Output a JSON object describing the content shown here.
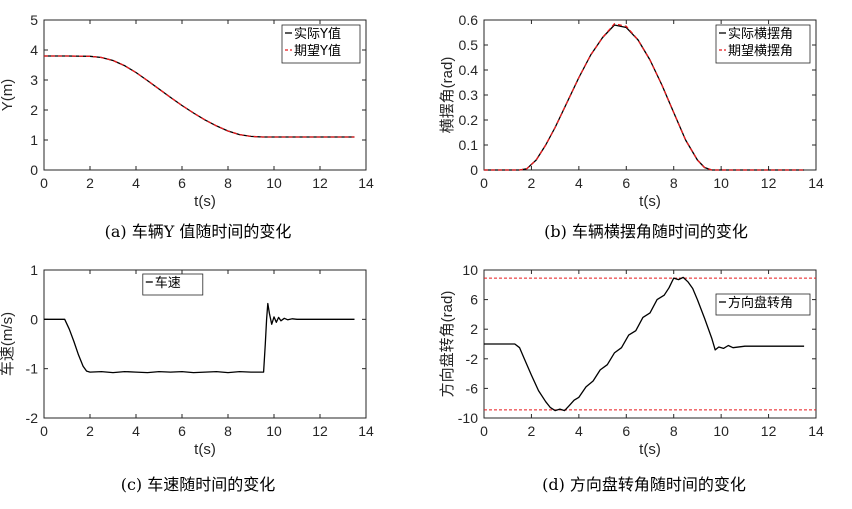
{
  "chart_data": [
    {
      "id": "a",
      "type": "line",
      "caption": "(a)  车辆Y 值随时间的变化",
      "xlabel": "t(s)",
      "ylabel": "Y(m)",
      "xlim": [
        0,
        14
      ],
      "ylim": [
        0,
        5
      ],
      "xticks": [
        0,
        2,
        4,
        6,
        8,
        10,
        12,
        14
      ],
      "yticks": [
        0,
        1,
        2,
        3,
        4,
        5
      ],
      "legend": "top-right",
      "series": [
        {
          "name": "实际Y值",
          "color": "#000000",
          "dash": "solid",
          "x": [
            0,
            1,
            2,
            2.5,
            3,
            3.5,
            4,
            4.5,
            5,
            5.5,
            6,
            6.5,
            7,
            7.5,
            8,
            8.5,
            9,
            9.5,
            10,
            11,
            12,
            13.5
          ],
          "y": [
            3.8,
            3.8,
            3.79,
            3.75,
            3.65,
            3.48,
            3.25,
            2.98,
            2.7,
            2.42,
            2.15,
            1.9,
            1.67,
            1.47,
            1.3,
            1.18,
            1.12,
            1.1,
            1.1,
            1.1,
            1.1,
            1.1
          ]
        },
        {
          "name": "期望Y值",
          "color": "#e8191c",
          "dash": "dashed",
          "x": [
            0,
            1,
            2,
            2.5,
            3,
            3.5,
            4,
            4.5,
            5,
            5.5,
            6,
            6.5,
            7,
            7.5,
            8,
            8.5,
            9,
            9.5,
            10,
            11,
            12,
            13.5
          ],
          "y": [
            3.8,
            3.8,
            3.79,
            3.75,
            3.65,
            3.48,
            3.25,
            2.98,
            2.7,
            2.42,
            2.15,
            1.9,
            1.67,
            1.47,
            1.3,
            1.18,
            1.12,
            1.1,
            1.1,
            1.1,
            1.1,
            1.1
          ]
        }
      ]
    },
    {
      "id": "b",
      "type": "line",
      "caption": "(b)  车辆横摆角随时间的变化",
      "xlabel": "t(s)",
      "ylabel": "横摆角(rad)",
      "xlim": [
        0,
        14
      ],
      "ylim": [
        0,
        0.6
      ],
      "xticks": [
        0,
        2,
        4,
        6,
        8,
        10,
        12,
        14
      ],
      "yticks": [
        0,
        0.1,
        0.2,
        0.3,
        0.4,
        0.5,
        0.6
      ],
      "legend": "top-right",
      "series": [
        {
          "name": "实际横摆角",
          "color": "#000000",
          "dash": "solid",
          "x": [
            0,
            1.5,
            1.8,
            2.2,
            2.6,
            3,
            3.5,
            4,
            4.5,
            5,
            5.5,
            6,
            6.5,
            7,
            7.5,
            8,
            8.5,
            9,
            9.3,
            9.6,
            10,
            12,
            13.5
          ],
          "y": [
            0,
            0,
            0.005,
            0.04,
            0.1,
            0.17,
            0.27,
            0.37,
            0.46,
            0.53,
            0.58,
            0.57,
            0.52,
            0.44,
            0.34,
            0.23,
            0.12,
            0.04,
            0.01,
            0,
            0,
            0,
            0
          ]
        },
        {
          "name": "期望横摆角",
          "color": "#e8191c",
          "dash": "dashed",
          "x": [
            0,
            1.5,
            1.8,
            2.2,
            2.6,
            3,
            3.5,
            4,
            4.5,
            5,
            5.5,
            6,
            6.5,
            7,
            7.5,
            8,
            8.5,
            9,
            9.3,
            9.6,
            10,
            12,
            13.5
          ],
          "y": [
            0,
            0,
            0.005,
            0.04,
            0.1,
            0.17,
            0.27,
            0.37,
            0.46,
            0.53,
            0.585,
            0.575,
            0.52,
            0.44,
            0.34,
            0.23,
            0.12,
            0.04,
            0.01,
            0,
            0,
            0,
            0
          ]
        }
      ]
    },
    {
      "id": "c",
      "type": "line",
      "caption": "(c)  车速随时间的变化",
      "xlabel": "t(s)",
      "ylabel": "车速(m/s)",
      "xlim": [
        0,
        14
      ],
      "ylim": [
        -2,
        1
      ],
      "xticks": [
        0,
        2,
        4,
        6,
        8,
        10,
        12,
        14
      ],
      "yticks": [
        -2,
        -1,
        0,
        1
      ],
      "legend": "top-center",
      "series": [
        {
          "name": "车速",
          "color": "#000000",
          "dash": "solid",
          "x": [
            0,
            0.9,
            1.1,
            1.3,
            1.5,
            1.7,
            1.85,
            2,
            2.5,
            3,
            3.5,
            4,
            4.5,
            5,
            5.5,
            6,
            6.5,
            7,
            7.5,
            8,
            8.5,
            9,
            9.4,
            9.55,
            9.62,
            9.68,
            9.73,
            9.8,
            9.9,
            10,
            10.1,
            10.2,
            10.3,
            10.45,
            10.6,
            10.8,
            11,
            12,
            13.5
          ],
          "y": [
            0,
            0,
            -0.2,
            -0.45,
            -0.72,
            -0.95,
            -1.05,
            -1.07,
            -1.06,
            -1.08,
            -1.06,
            -1.07,
            -1.08,
            -1.06,
            -1.07,
            -1.06,
            -1.08,
            -1.07,
            -1.06,
            -1.08,
            -1.06,
            -1.07,
            -1.07,
            -1.07,
            -0.5,
            0.0,
            0.32,
            0.12,
            -0.1,
            0.05,
            -0.06,
            0.04,
            -0.03,
            0.02,
            -0.01,
            0.01,
            0,
            0,
            0
          ]
        }
      ]
    },
    {
      "id": "d",
      "type": "line",
      "caption": "(d)  方向盘转角随时间的变化",
      "xlabel": "t(s)",
      "ylabel": "方向盘转角(rad)",
      "xlim": [
        0,
        14
      ],
      "ylim": [
        -10,
        10
      ],
      "xticks": [
        0,
        2,
        4,
        6,
        8,
        10,
        12,
        14
      ],
      "yticks": [
        -10,
        -6,
        -2,
        2,
        6,
        10
      ],
      "legend": "top-right",
      "bounds": [
        8.9,
        -8.9
      ],
      "bound_color": "#e8191c",
      "series": [
        {
          "name": "方向盘转角",
          "color": "#000000",
          "dash": "solid",
          "x": [
            0,
            1.3,
            1.5,
            1.7,
            2.0,
            2.3,
            2.6,
            2.8,
            3.0,
            3.2,
            3.4,
            3.6,
            3.8,
            4.0,
            4.3,
            4.6,
            4.9,
            5.2,
            5.5,
            5.8,
            6.1,
            6.4,
            6.7,
            7.0,
            7.3,
            7.6,
            7.8,
            8.0,
            8.2,
            8.4,
            8.6,
            8.8,
            9.0,
            9.3,
            9.6,
            9.75,
            9.9,
            10.1,
            10.3,
            10.5,
            11,
            12,
            13.5
          ],
          "y": [
            0,
            0,
            -0.5,
            -2.0,
            -4.2,
            -6.3,
            -7.8,
            -8.6,
            -9.0,
            -8.8,
            -9.0,
            -8.3,
            -7.6,
            -7.2,
            -5.8,
            -5.0,
            -3.5,
            -2.8,
            -1.2,
            -0.5,
            1.2,
            1.8,
            3.6,
            4.2,
            6.0,
            6.6,
            7.6,
            8.9,
            8.7,
            9.0,
            8.4,
            7.5,
            6.0,
            3.5,
            0.8,
            -0.8,
            -0.4,
            -0.6,
            -0.2,
            -0.5,
            -0.3,
            -0.3,
            -0.3
          ]
        }
      ]
    }
  ]
}
